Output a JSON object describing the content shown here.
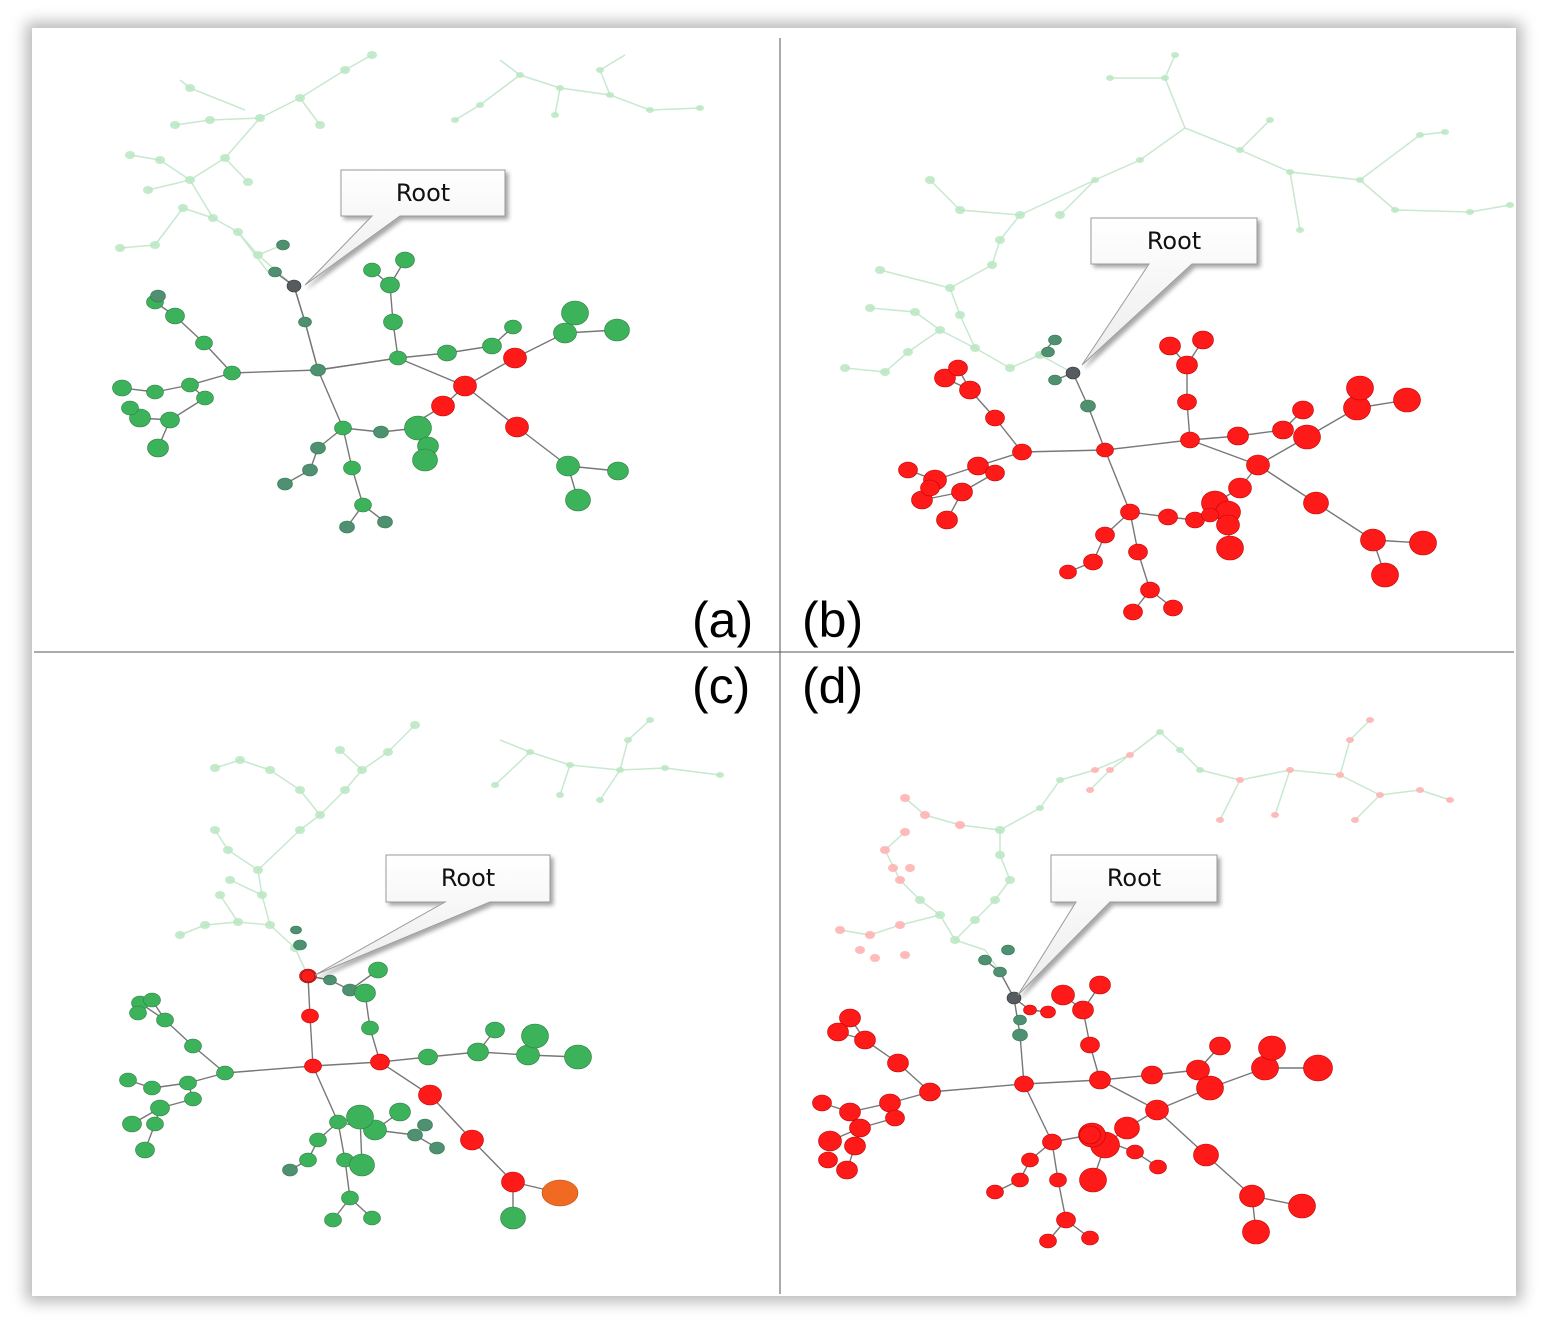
{
  "figure": {
    "panels": [
      {
        "id": "a",
        "label": "(a)",
        "callout": "Root",
        "state": "green tree, red path from root",
        "highlight": "#ff1a1a",
        "base": "#3cb35a"
      },
      {
        "id": "b",
        "label": "(b)",
        "callout": "Root",
        "state": "red subtree",
        "highlight": "#ff1a1a",
        "base": "#3cb35a"
      },
      {
        "id": "c",
        "label": "(c)",
        "callout": "Root",
        "state": "green tree, red path to orange node",
        "highlight": "#ff1a1a",
        "base": "#3cb35a",
        "target": "#f06a22"
      },
      {
        "id": "d",
        "label": "(d)",
        "callout": "Root",
        "state": "red subtree",
        "highlight": "#ff1a1a",
        "base": "#3cb35a"
      }
    ]
  },
  "colors": {
    "green": "#3cb35a",
    "red": "#ff1a1a",
    "root": "#555b5e",
    "orange": "#f06a22",
    "edge": "#777777",
    "divider": "#555555"
  }
}
